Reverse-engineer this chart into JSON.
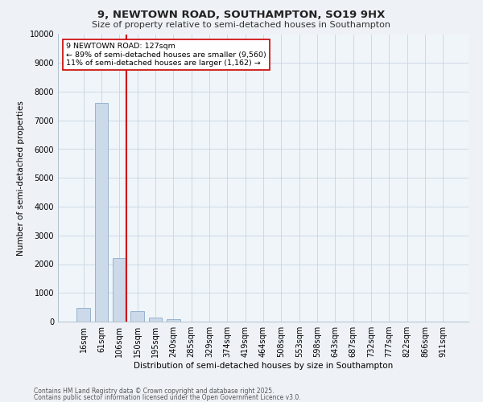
{
  "title_line1": "9, NEWTOWN ROAD, SOUTHAMPTON, SO19 9HX",
  "title_line2": "Size of property relative to semi-detached houses in Southampton",
  "xlabel": "Distribution of semi-detached houses by size in Southampton",
  "ylabel": "Number of semi-detached properties",
  "categories": [
    "16sqm",
    "61sqm",
    "106sqm",
    "150sqm",
    "195sqm",
    "240sqm",
    "285sqm",
    "329sqm",
    "374sqm",
    "419sqm",
    "464sqm",
    "508sqm",
    "553sqm",
    "598sqm",
    "643sqm",
    "687sqm",
    "732sqm",
    "777sqm",
    "822sqm",
    "866sqm",
    "911sqm"
  ],
  "values": [
    480,
    7600,
    2200,
    370,
    130,
    80,
    0,
    0,
    0,
    0,
    0,
    0,
    0,
    0,
    0,
    0,
    0,
    0,
    0,
    0,
    0
  ],
  "bar_color": "#ccd9e8",
  "bar_edge_color": "#8aabcc",
  "vline_x_index": 2,
  "vline_color": "#cc0000",
  "annotation_text": "9 NEWTOWN ROAD: 127sqm\n← 89% of semi-detached houses are smaller (9,560)\n11% of semi-detached houses are larger (1,162) →",
  "annotation_box_color": "#ffffff",
  "annotation_box_edge": "#cc0000",
  "ylim": [
    0,
    10000
  ],
  "yticks": [
    0,
    1000,
    2000,
    3000,
    4000,
    5000,
    6000,
    7000,
    8000,
    9000,
    10000
  ],
  "footer_line1": "Contains HM Land Registry data © Crown copyright and database right 2025.",
  "footer_line2": "Contains public sector information licensed under the Open Government Licence v3.0.",
  "bg_color": "#eef2f7",
  "plot_bg_color": "#f0f5fa",
  "grid_color": "#c8d4e0",
  "title_fontsize": 9.5,
  "subtitle_fontsize": 8,
  "axis_label_fontsize": 7.5,
  "tick_fontsize": 7,
  "annotation_fontsize": 6.8,
  "footer_fontsize": 5.5
}
